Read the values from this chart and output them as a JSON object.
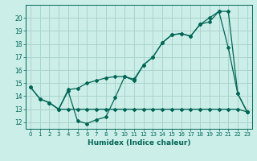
{
  "title": "",
  "xlabel": "Humidex (Indice chaleur)",
  "xlim": [
    -0.5,
    23.5
  ],
  "ylim": [
    11.5,
    21.0
  ],
  "yticks": [
    12,
    13,
    14,
    15,
    16,
    17,
    18,
    19,
    20
  ],
  "xticks": [
    0,
    1,
    2,
    3,
    4,
    5,
    6,
    7,
    8,
    9,
    10,
    11,
    12,
    13,
    14,
    15,
    16,
    17,
    18,
    19,
    20,
    21,
    22,
    23
  ],
  "bg_color": "#cceee8",
  "grid_color": "#aad4cc",
  "line_color": "#006655",
  "line1_x": [
    0,
    1,
    2,
    3,
    4,
    5,
    6,
    7,
    8,
    9,
    10,
    11,
    12,
    13,
    14,
    15,
    16,
    17,
    18,
    19,
    20,
    21,
    22,
    23
  ],
  "line1_y": [
    14.7,
    13.8,
    13.5,
    13.0,
    14.4,
    12.1,
    11.9,
    12.2,
    12.4,
    13.9,
    15.5,
    15.2,
    16.4,
    17.0,
    18.1,
    18.7,
    18.8,
    18.6,
    19.5,
    20.0,
    20.5,
    17.7,
    14.2,
    12.8
  ],
  "line2_x": [
    0,
    1,
    2,
    3,
    4,
    5,
    6,
    7,
    8,
    9,
    10,
    11,
    12,
    13,
    14,
    15,
    16,
    17,
    18,
    19,
    20,
    21,
    22,
    23
  ],
  "line2_y": [
    14.7,
    13.8,
    13.5,
    13.0,
    14.5,
    14.6,
    15.0,
    15.2,
    15.4,
    15.5,
    15.5,
    15.3,
    16.4,
    17.0,
    18.1,
    18.7,
    18.8,
    18.6,
    19.5,
    19.7,
    20.5,
    20.5,
    14.2,
    12.8
  ],
  "line3_x": [
    2,
    3,
    4,
    5,
    6,
    7,
    8,
    9,
    10,
    11,
    12,
    13,
    14,
    15,
    16,
    17,
    18,
    19,
    20,
    21,
    22,
    23
  ],
  "line3_y": [
    13.5,
    13.0,
    13.0,
    13.0,
    13.0,
    13.0,
    13.0,
    13.0,
    13.0,
    13.0,
    13.0,
    13.0,
    13.0,
    13.0,
    13.0,
    13.0,
    13.0,
    13.0,
    13.0,
    13.0,
    13.0,
    12.8
  ]
}
